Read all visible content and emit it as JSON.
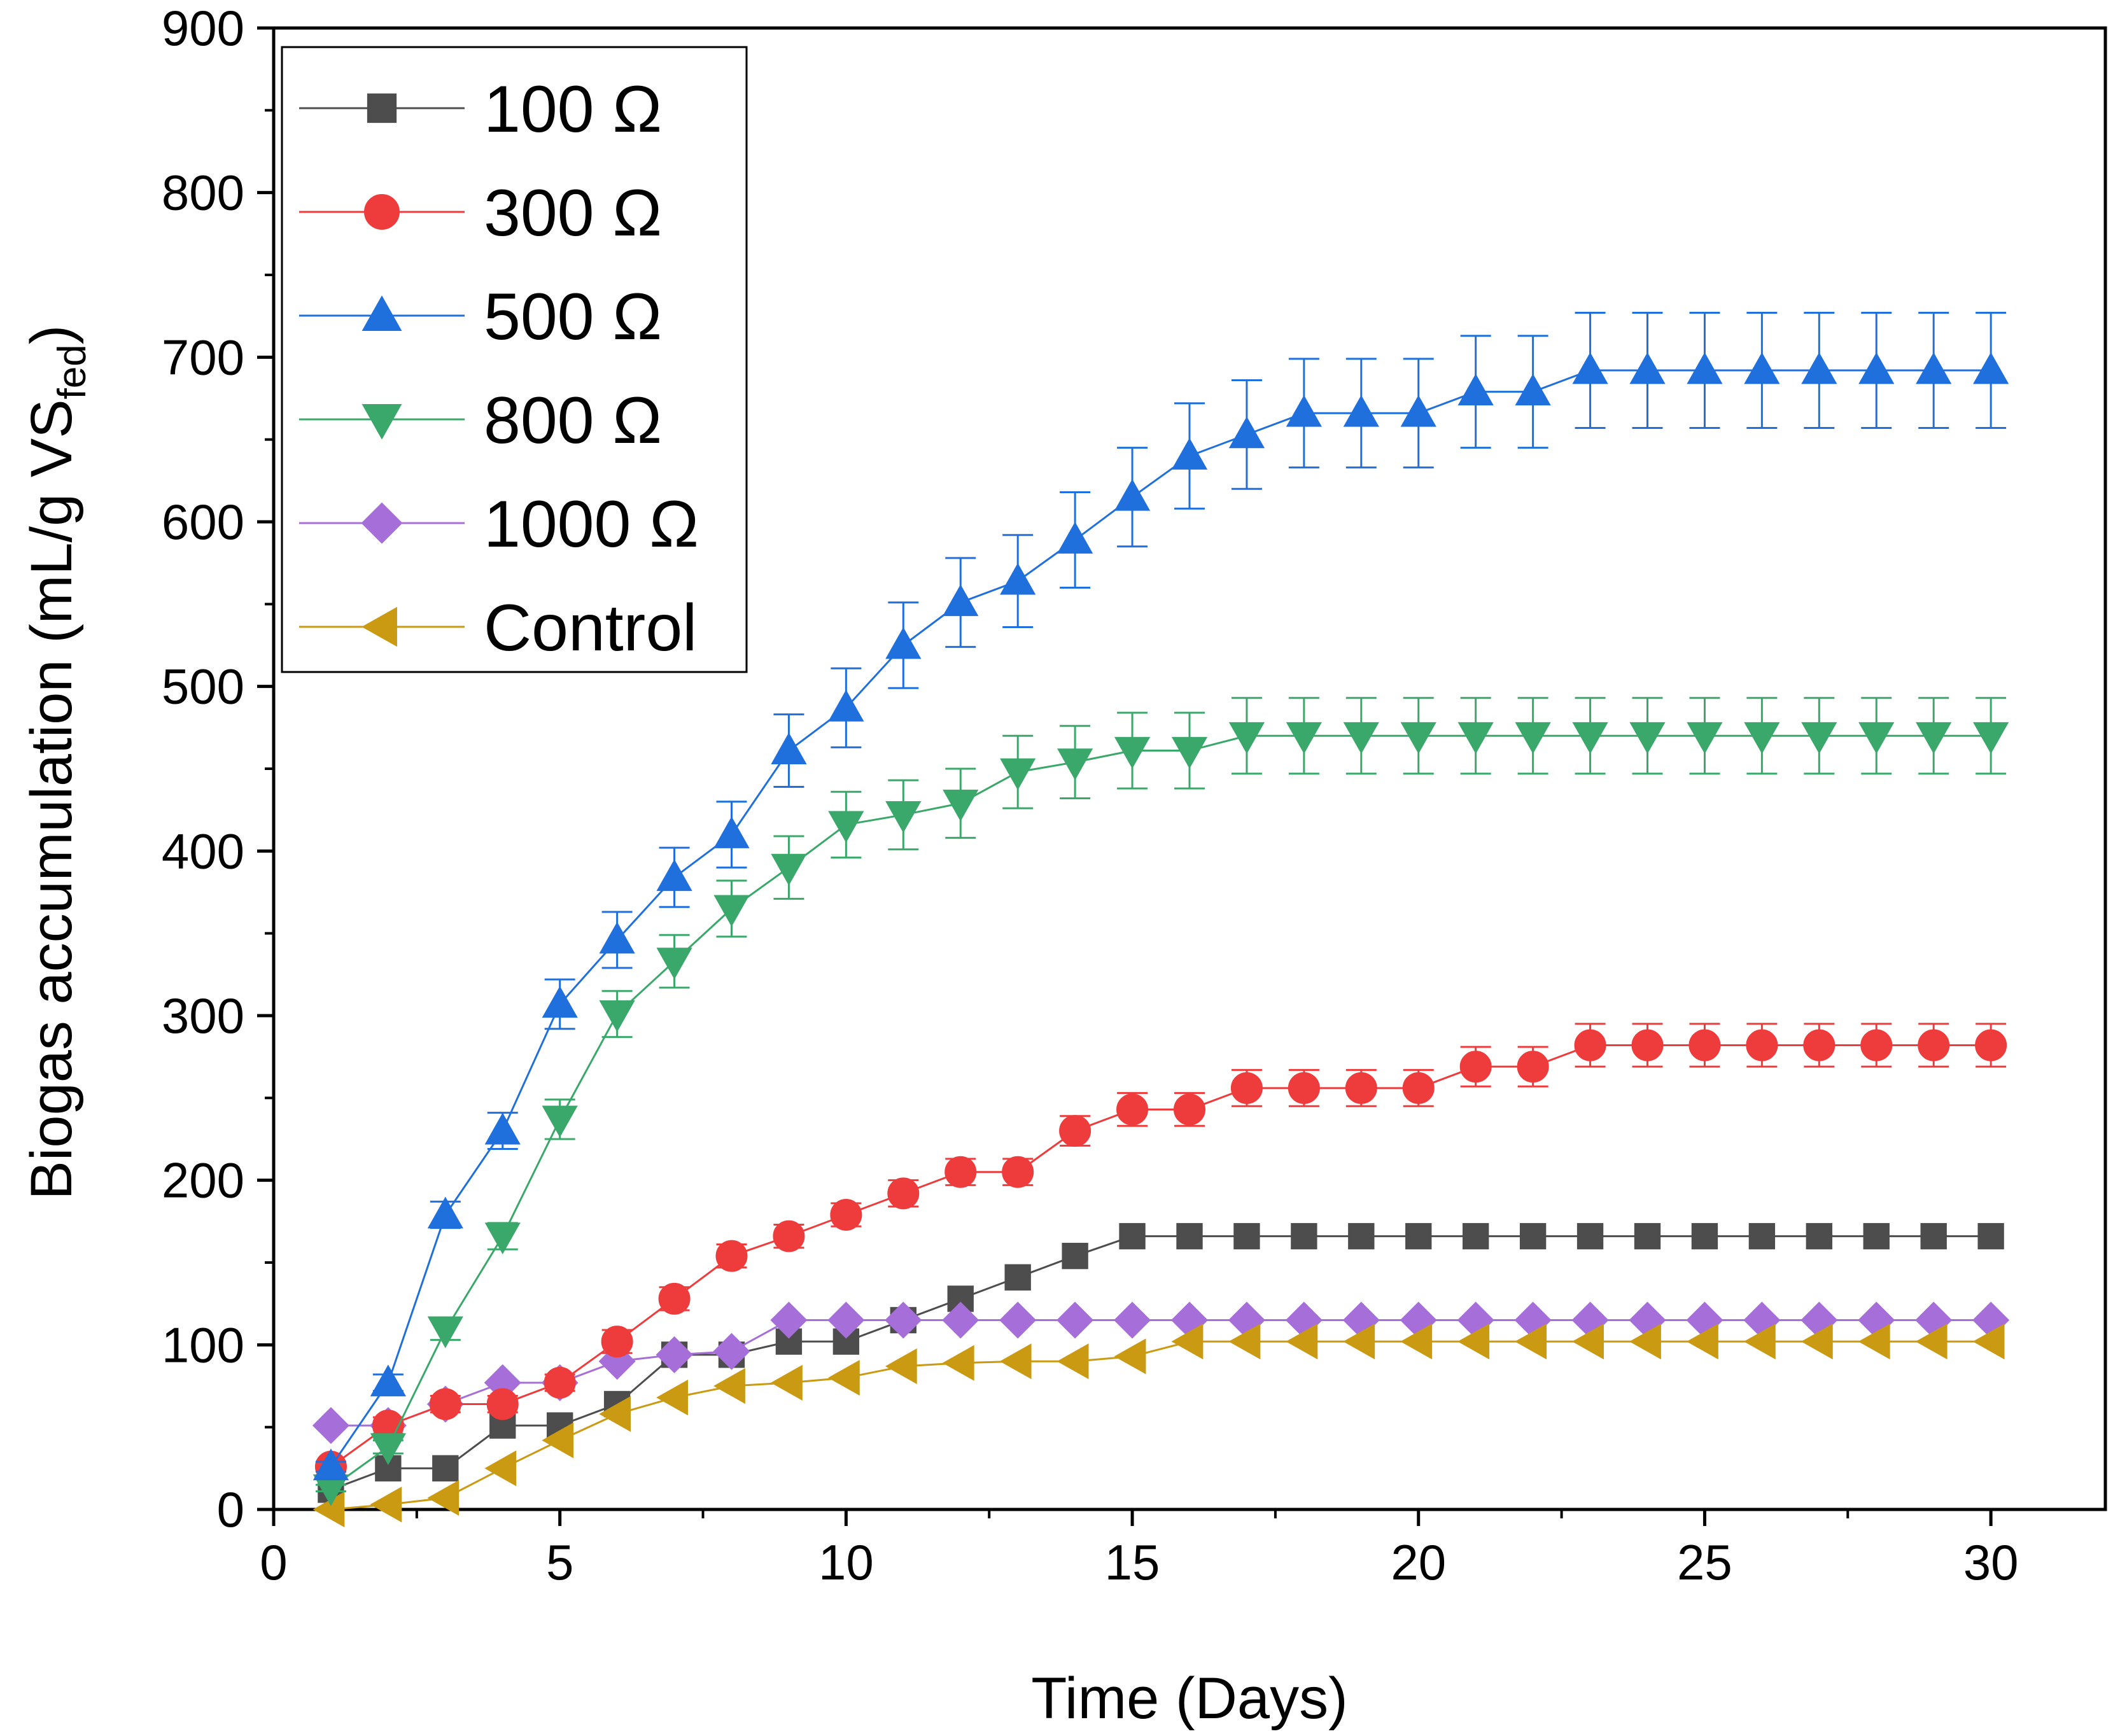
{
  "chart_data": {
    "type": "line",
    "xlabel": "Time (Days)",
    "ylabel": {
      "main": "Biogas accumulation (mL/g VS",
      "sub": "fed",
      "close": ")"
    },
    "xlim": [
      0,
      32
    ],
    "ylim": [
      0,
      900
    ],
    "x_ticks": [
      0,
      5,
      10,
      15,
      20,
      25,
      30
    ],
    "x_minor_ticks": [
      2.5,
      7.5,
      12.5,
      17.5,
      22.5,
      27.5
    ],
    "y_ticks": [
      0,
      100,
      200,
      300,
      400,
      500,
      600,
      700,
      800,
      900
    ],
    "y_minor_ticks": [
      50,
      150,
      250,
      350,
      450,
      550,
      650,
      750,
      850
    ],
    "grid": false,
    "legend_position": "top-left",
    "x": [
      1,
      2,
      3,
      4,
      5,
      6,
      7,
      8,
      9,
      10,
      11,
      12,
      13,
      14,
      15,
      16,
      17,
      18,
      19,
      20,
      21,
      22,
      23,
      24,
      25,
      26,
      27,
      28,
      29,
      30
    ],
    "series": [
      {
        "name": "100 Ω",
        "color": "#4d4d4d",
        "marker": "square",
        "values": [
          12,
          25,
          25,
          51,
          51,
          64,
          94,
          94,
          102,
          102,
          115,
          128,
          141,
          154,
          166,
          166,
          166,
          166,
          166,
          166,
          166,
          166,
          166,
          166,
          166,
          166,
          166,
          166,
          166,
          166
        ],
        "errors": [
          0,
          0,
          0,
          0,
          0,
          0,
          0,
          0,
          0,
          0,
          0,
          0,
          0,
          0,
          0,
          0,
          0,
          0,
          0,
          0,
          0,
          0,
          0,
          0,
          0,
          0,
          0,
          0,
          0,
          0
        ]
      },
      {
        "name": "300 Ω",
        "color": "#ee3b3b",
        "marker": "circle",
        "values": [
          26,
          51,
          64,
          64,
          77,
          102,
          128,
          154,
          166,
          179,
          192,
          205,
          205,
          230,
          243,
          243,
          256,
          256,
          256,
          256,
          269,
          269,
          282,
          282,
          282,
          282,
          282,
          282,
          282,
          282
        ],
        "errors": [
          3,
          5,
          5,
          5,
          5,
          7,
          7,
          7,
          7,
          7,
          8,
          8,
          8,
          9,
          10,
          10,
          11,
          11,
          11,
          11,
          12,
          12,
          13,
          13,
          13,
          13,
          13,
          13,
          13,
          13
        ]
      },
      {
        "name": "500 Ω",
        "color": "#1f6fdc",
        "marker": "triangle-up",
        "values": [
          26,
          77,
          179,
          230,
          307,
          346,
          384,
          410,
          461,
          487,
          525,
          551,
          564,
          589,
          615,
          640,
          653,
          666,
          666,
          666,
          679,
          679,
          692,
          692,
          692,
          692,
          692,
          692,
          692,
          692
        ],
        "errors": [
          3,
          5,
          8,
          11,
          15,
          17,
          18,
          20,
          22,
          24,
          26,
          27,
          28,
          29,
          30,
          32,
          33,
          33,
          33,
          33,
          34,
          34,
          35,
          35,
          35,
          35,
          35,
          35,
          35,
          35
        ]
      },
      {
        "name": "800 Ω",
        "color": "#3aa86a",
        "marker": "triangle-down",
        "values": [
          13,
          38,
          109,
          166,
          237,
          301,
          333,
          365,
          390,
          416,
          422,
          429,
          448,
          454,
          461,
          461,
          470,
          470,
          470,
          470,
          470,
          470,
          470,
          470,
          470,
          470,
          470,
          470,
          470,
          470
        ],
        "errors": [
          2,
          4,
          6,
          8,
          12,
          14,
          16,
          17,
          19,
          20,
          21,
          21,
          22,
          22,
          23,
          23,
          23,
          23,
          23,
          23,
          23,
          23,
          23,
          23,
          23,
          23,
          23,
          23,
          23,
          23
        ]
      },
      {
        "name": "1000 Ω",
        "color": "#a66ed8",
        "marker": "diamond",
        "values": [
          51,
          51,
          64,
          77,
          77,
          90,
          94,
          96,
          115,
          115,
          115,
          115,
          115,
          115,
          115,
          115,
          115,
          115,
          115,
          115,
          115,
          115,
          115,
          115,
          115,
          115,
          115,
          115,
          115,
          115
        ],
        "errors": [
          0,
          0,
          0,
          0,
          0,
          0,
          0,
          0,
          0,
          0,
          0,
          0,
          0,
          0,
          0,
          0,
          0,
          0,
          0,
          0,
          0,
          0,
          0,
          0,
          0,
          0,
          0,
          0,
          0,
          0
        ]
      },
      {
        "name": "Control",
        "color": "#c99a12",
        "marker": "triangle-left",
        "values": [
          0,
          3,
          7,
          25,
          42,
          58,
          68,
          75,
          77,
          80,
          87,
          89,
          90,
          90,
          93,
          102,
          102,
          102,
          102,
          102,
          102,
          102,
          102,
          102,
          102,
          102,
          102,
          102,
          102,
          102
        ],
        "errors": [
          0,
          0,
          0,
          0,
          0,
          0,
          0,
          0,
          0,
          0,
          0,
          0,
          0,
          0,
          0,
          0,
          0,
          0,
          0,
          0,
          0,
          0,
          0,
          0,
          0,
          0,
          0,
          0,
          0,
          0
        ]
      }
    ]
  }
}
